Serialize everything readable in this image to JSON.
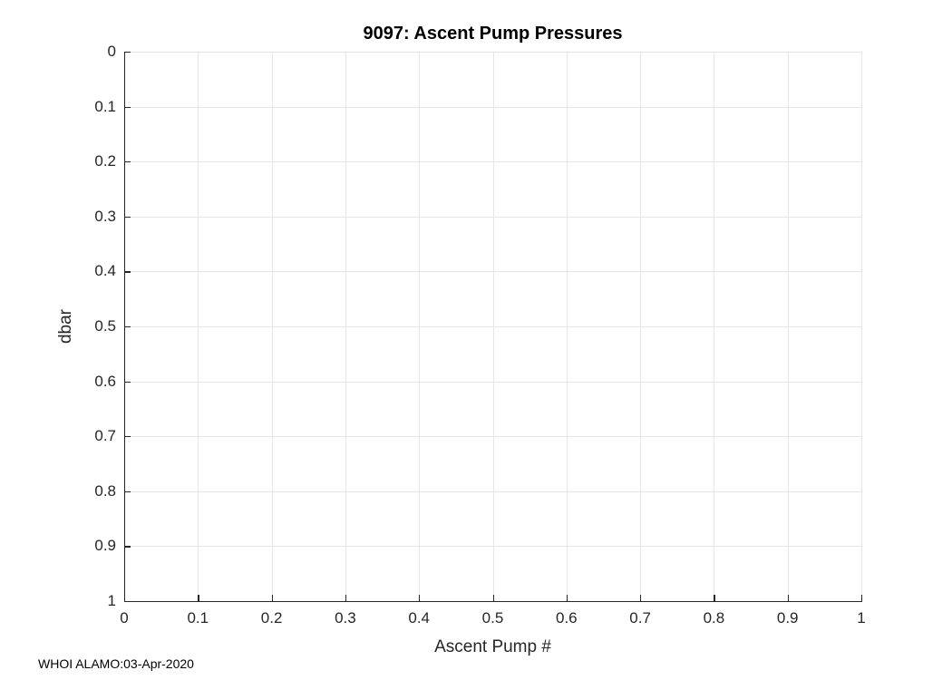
{
  "figure": {
    "footer_text": "WHOI ALAMO:03-Apr-2020"
  },
  "colors": {
    "background": "#ffffff",
    "axis": "#262626",
    "grid": "#e6e6e6",
    "title": "#000000",
    "tick_label": "#262626"
  },
  "chart_data": {
    "type": "scatter",
    "title": "9097: Ascent Pump Pressures",
    "xlabel": "Ascent Pump #",
    "ylabel": "dbar",
    "xlim": [
      0,
      1
    ],
    "ylim": [
      0,
      1
    ],
    "ydir": "reverse",
    "grid": true,
    "legend": null,
    "xticks": [
      0,
      0.1,
      0.2,
      0.3,
      0.4,
      0.5,
      0.6,
      0.7,
      0.8,
      0.9,
      1
    ],
    "xtick_labels": [
      "0",
      "0.1",
      "0.2",
      "0.3",
      "0.4",
      "0.5",
      "0.6",
      "0.7",
      "0.8",
      "0.9",
      "1"
    ],
    "yticks": [
      0,
      0.1,
      0.2,
      0.3,
      0.4,
      0.5,
      0.6,
      0.7,
      0.8,
      0.9,
      1
    ],
    "ytick_labels": [
      "0",
      "0.1",
      "0.2",
      "0.3",
      "0.4",
      "0.5",
      "0.6",
      "0.7",
      "0.8",
      "0.9",
      "1"
    ],
    "series": []
  }
}
